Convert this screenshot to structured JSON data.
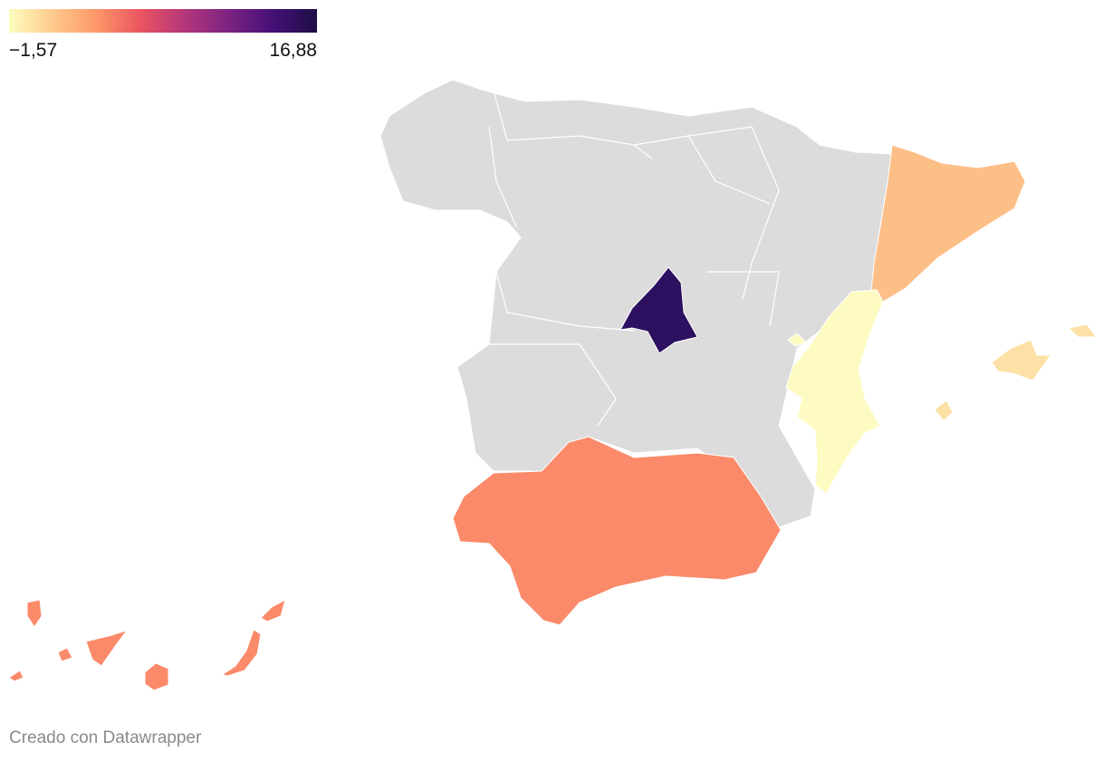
{
  "legend": {
    "min_label": "−1,57",
    "max_label": "16,88",
    "min_value": -1.57,
    "max_value": 16.88,
    "gradient_colors": [
      "#fcfdbf",
      "#feca8d",
      "#fd9668",
      "#e95462",
      "#b3367a",
      "#7c2382",
      "#451077",
      "#1d0f45"
    ]
  },
  "map": {
    "no_data_color": "#dcdcdc",
    "border_color": "#ffffff",
    "highlighted_regions": [
      {
        "id": "madrid",
        "color": "#2d1060"
      },
      {
        "id": "cataluna",
        "color": "#fdbf88"
      },
      {
        "id": "valencia",
        "color": "#fdfbc2"
      },
      {
        "id": "baleares",
        "color": "#fde0a6"
      },
      {
        "id": "andalucia",
        "color": "#fa8a69"
      },
      {
        "id": "canarias",
        "color": "#fa8a69"
      }
    ]
  },
  "footer": {
    "credit": "Creado con Datawrapper"
  }
}
